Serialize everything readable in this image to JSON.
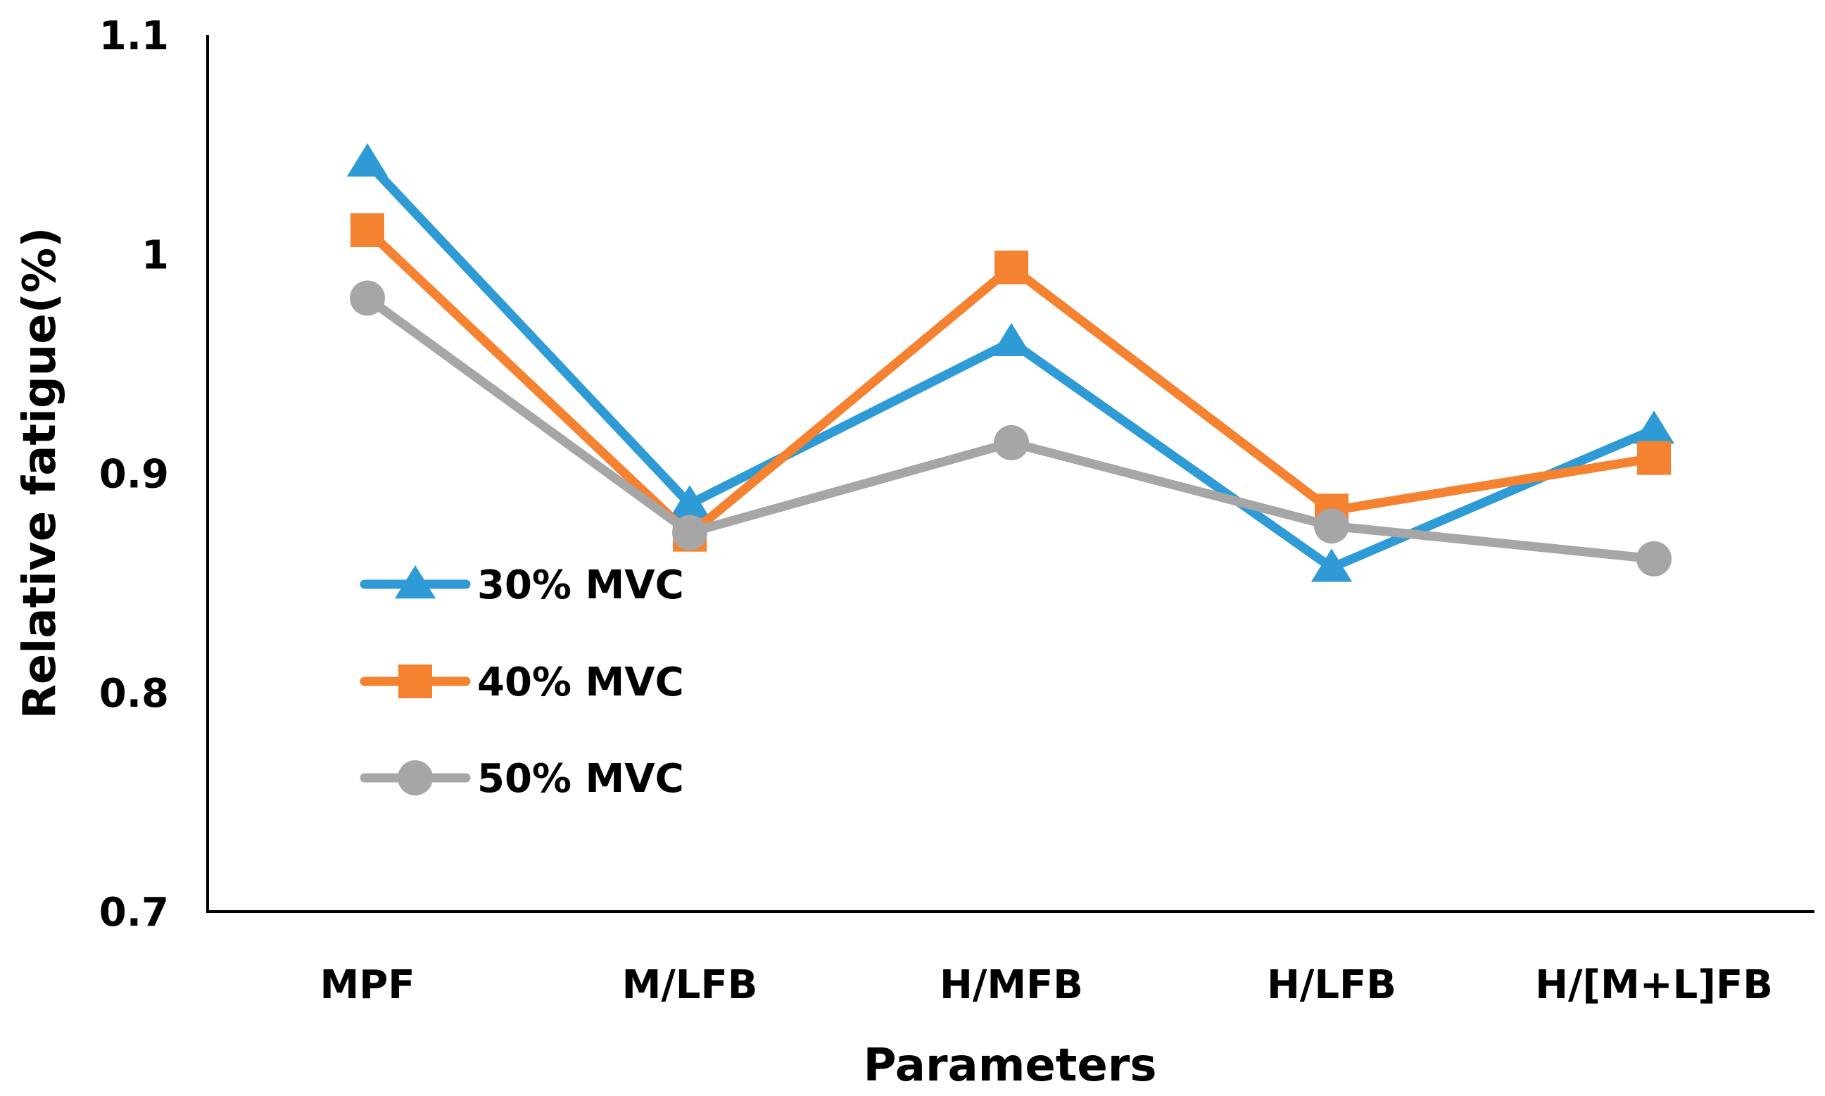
{
  "chart_data": {
    "type": "line",
    "title": "",
    "xlabel": "Parameters",
    "ylabel": "Relative fatigue(%)",
    "ylim": [
      0.7,
      1.1
    ],
    "yticks": [
      "0.7",
      "0.8",
      "0.9",
      "1",
      "1.1"
    ],
    "ytick_values": [
      0.7,
      0.8,
      0.9,
      1.0,
      1.1
    ],
    "grid": false,
    "legend_position": "center-left",
    "categories": [
      "MPF",
      "M/LFB",
      "H/MFB",
      "H/LFB",
      "H/[M+L]FB"
    ],
    "series": [
      {
        "name": "30% MVC",
        "color": "#2E9BD6",
        "marker": "triangle",
        "values": [
          1.042,
          0.886,
          0.96,
          0.857,
          0.92
        ]
      },
      {
        "name": "40% MVC",
        "color": "#F58231",
        "marker": "square",
        "values": [
          1.011,
          0.872,
          0.994,
          0.883,
          0.907
        ]
      },
      {
        "name": "50% MVC",
        "color": "#A6A6A6",
        "marker": "circle",
        "values": [
          0.98,
          0.873,
          0.914,
          0.876,
          0.861
        ]
      }
    ]
  }
}
